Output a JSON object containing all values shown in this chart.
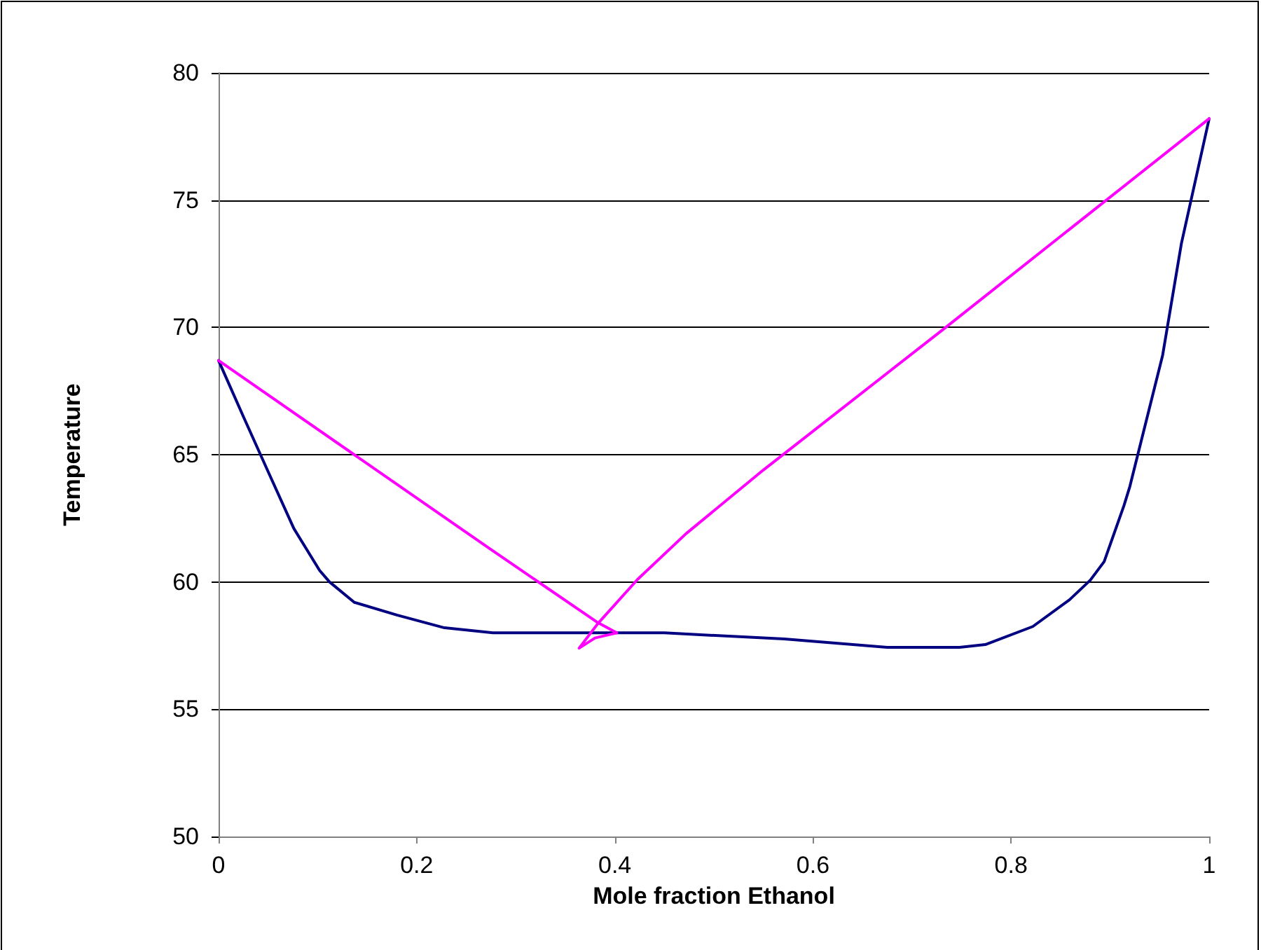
{
  "chart_data": {
    "type": "line",
    "xlabel": "Mole fraction Ethanol",
    "ylabel": "Temperature",
    "series": [
      {
        "color": "#000080",
        "x": [
          0,
          0.025,
          0.051,
          0.076,
          0.102,
          0.112,
          0.137,
          0.18,
          0.228,
          0.277,
          0.35,
          0.45,
          0.571,
          0.675,
          0.748,
          0.774,
          0.822,
          0.859,
          0.88,
          0.894,
          0.914,
          0.92,
          0.953,
          0.972,
          1
        ],
        "values": [
          68.7,
          66.5,
          64.25,
          62.1,
          60.45,
          60.0,
          59.2,
          58.7,
          58.2,
          58.0,
          58.0,
          58.0,
          57.76,
          57.43,
          57.43,
          57.54,
          58.25,
          59.3,
          60.07,
          60.8,
          63.0,
          63.76,
          68.9,
          73.3,
          78.2
        ]
      },
      {
        "color": "#ff00ff",
        "x": [
          0,
          0.274,
          0.383,
          0.402,
          0.38,
          0.364,
          0.383,
          0.423,
          0.472,
          0.55,
          0.734,
          1
        ],
        "values": [
          68.7,
          61.3,
          58.4,
          58.0,
          57.8,
          57.4,
          58.37,
          60.1,
          61.9,
          64.4,
          70.0,
          78.2
        ]
      }
    ],
    "xlim": [
      0,
      1
    ],
    "xticks": [
      0,
      0.2,
      0.4,
      0.6,
      0.8,
      1
    ],
    "ylim": [
      50,
      80
    ],
    "yticks": [
      50,
      55,
      60,
      65,
      70,
      75,
      80
    ],
    "grid": "y",
    "marker": "none",
    "line_style": "solid"
  }
}
